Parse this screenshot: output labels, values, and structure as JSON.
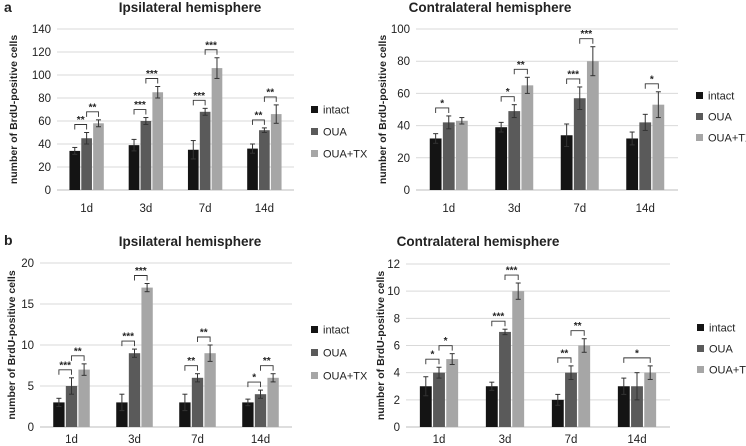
{
  "panels": {
    "a": "a",
    "b": "b"
  },
  "colors": {
    "intact": "#141414",
    "OUA": "#5a5a5a",
    "OUA+TX": "#a6a6a6",
    "grid": "#d9d9d9",
    "axis": "#bdbdbd",
    "error": "#333333"
  },
  "chart_data": [
    {
      "id": "a-ipsi",
      "type": "bar",
      "title": "Ipsilateral hemisphere",
      "xlabel": "",
      "ylabel": "number of BrdU-positive cells",
      "ylim": [
        0,
        140
      ],
      "yticks": [
        0,
        20,
        40,
        60,
        80,
        100,
        120,
        140
      ],
      "grid": true,
      "legend_position": "right",
      "categories": [
        "1d",
        "3d",
        "7d",
        "14d"
      ],
      "series": [
        {
          "name": "intact",
          "values": [
            34,
            39,
            35,
            36
          ],
          "errors": [
            3,
            5,
            8,
            4
          ]
        },
        {
          "name": "OUA",
          "values": [
            45,
            60,
            68,
            52
          ],
          "errors": [
            5,
            3,
            3,
            2
          ]
        },
        {
          "name": "OUA+TX",
          "values": [
            58,
            85,
            106,
            66
          ],
          "errors": [
            3,
            5,
            9,
            8
          ]
        }
      ],
      "annotations": [
        {
          "category": 0,
          "from": 0,
          "to": 1,
          "text": "**"
        },
        {
          "category": 0,
          "from": 1,
          "to": 2,
          "text": "**"
        },
        {
          "category": 1,
          "from": 0,
          "to": 1,
          "text": "***"
        },
        {
          "category": 1,
          "from": 1,
          "to": 2,
          "text": "***"
        },
        {
          "category": 2,
          "from": 0,
          "to": 1,
          "text": "***"
        },
        {
          "category": 2,
          "from": 1,
          "to": 2,
          "text": "***"
        },
        {
          "category": 3,
          "from": 0,
          "to": 1,
          "text": "**"
        },
        {
          "category": 3,
          "from": 1,
          "to": 2,
          "text": "**"
        }
      ]
    },
    {
      "id": "a-contra",
      "type": "bar",
      "title": "Contralateral hemisphere",
      "xlabel": "",
      "ylabel": "number of BrdU-positive cells",
      "ylim": [
        0,
        100
      ],
      "yticks": [
        0,
        20,
        40,
        60,
        80,
        100
      ],
      "grid": true,
      "legend_position": "right",
      "categories": [
        "1d",
        "3d",
        "7d",
        "14d"
      ],
      "series": [
        {
          "name": "intact",
          "values": [
            32,
            39,
            34,
            32
          ],
          "errors": [
            3,
            3,
            7,
            4
          ]
        },
        {
          "name": "OUA",
          "values": [
            42,
            49,
            57,
            42
          ],
          "errors": [
            4,
            4,
            7,
            5
          ]
        },
        {
          "name": "OUA+TX",
          "values": [
            43,
            65,
            80,
            53
          ],
          "errors": [
            2,
            5,
            9,
            8
          ]
        }
      ],
      "annotations": [
        {
          "category": 0,
          "from": 0,
          "to": 1,
          "text": "*"
        },
        {
          "category": 1,
          "from": 0,
          "to": 1,
          "text": "*"
        },
        {
          "category": 1,
          "from": 1,
          "to": 2,
          "text": "**"
        },
        {
          "category": 2,
          "from": 0,
          "to": 1,
          "text": "***"
        },
        {
          "category": 2,
          "from": 1,
          "to": 2,
          "text": "***"
        },
        {
          "category": 3,
          "from": 1,
          "to": 2,
          "text": "*"
        }
      ]
    },
    {
      "id": "b-ipsi",
      "type": "bar",
      "title": "Ipsilateral hemisphere",
      "xlabel": "",
      "ylabel": "number of BrdU-positive cells",
      "ylim": [
        0,
        20
      ],
      "yticks": [
        0,
        5,
        10,
        15,
        20
      ],
      "grid": true,
      "legend_position": "right",
      "categories": [
        "1d",
        "3d",
        "7d",
        "14d"
      ],
      "series": [
        {
          "name": "intact",
          "values": [
            3,
            3,
            3,
            3
          ],
          "errors": [
            0.5,
            1,
            1,
            0.4
          ]
        },
        {
          "name": "OUA",
          "values": [
            5,
            9,
            6,
            4
          ],
          "errors": [
            1,
            0.5,
            0.5,
            0.5
          ]
        },
        {
          "name": "OUA+TX",
          "values": [
            7,
            17,
            9,
            6
          ],
          "errors": [
            0.7,
            0.5,
            1,
            0.5
          ]
        }
      ],
      "annotations": [
        {
          "category": 0,
          "from": 0,
          "to": 1,
          "text": "***"
        },
        {
          "category": 0,
          "from": 1,
          "to": 2,
          "text": "**"
        },
        {
          "category": 1,
          "from": 0,
          "to": 1,
          "text": "***"
        },
        {
          "category": 1,
          "from": 1,
          "to": 2,
          "text": "***"
        },
        {
          "category": 2,
          "from": 0,
          "to": 1,
          "text": "**"
        },
        {
          "category": 2,
          "from": 1,
          "to": 2,
          "text": "**"
        },
        {
          "category": 3,
          "from": 0,
          "to": 1,
          "text": "*"
        },
        {
          "category": 3,
          "from": 1,
          "to": 2,
          "text": "**"
        }
      ]
    },
    {
      "id": "b-contra",
      "type": "bar",
      "title": "Contralateral hemisphere",
      "xlabel": "",
      "ylabel": "number of BrdU-positive cells",
      "ylim": [
        0,
        12
      ],
      "yticks": [
        0,
        2,
        4,
        6,
        8,
        10,
        12
      ],
      "grid": true,
      "legend_position": "right",
      "categories": [
        "1d",
        "3d",
        "7d",
        "14d"
      ],
      "series": [
        {
          "name": "intact",
          "values": [
            3,
            3,
            2,
            3
          ],
          "errors": [
            0.7,
            0.3,
            0.4,
            0.6
          ]
        },
        {
          "name": "OUA",
          "values": [
            4,
            7,
            4,
            3
          ],
          "errors": [
            0.4,
            0.2,
            0.5,
            1
          ]
        },
        {
          "name": "OUA+TX",
          "values": [
            5,
            10,
            6,
            4
          ],
          "errors": [
            0.4,
            0.6,
            0.5,
            0.5
          ]
        }
      ],
      "annotations": [
        {
          "category": 0,
          "from": 0,
          "to": 1,
          "text": "*"
        },
        {
          "category": 0,
          "from": 1,
          "to": 2,
          "text": "*"
        },
        {
          "category": 1,
          "from": 0,
          "to": 1,
          "text": "***"
        },
        {
          "category": 1,
          "from": 1,
          "to": 2,
          "text": "***"
        },
        {
          "category": 2,
          "from": 0,
          "to": 1,
          "text": "**"
        },
        {
          "category": 2,
          "from": 1,
          "to": 2,
          "text": "**"
        },
        {
          "category": 3,
          "from": 0,
          "to": 2,
          "text": "*"
        }
      ]
    }
  ]
}
